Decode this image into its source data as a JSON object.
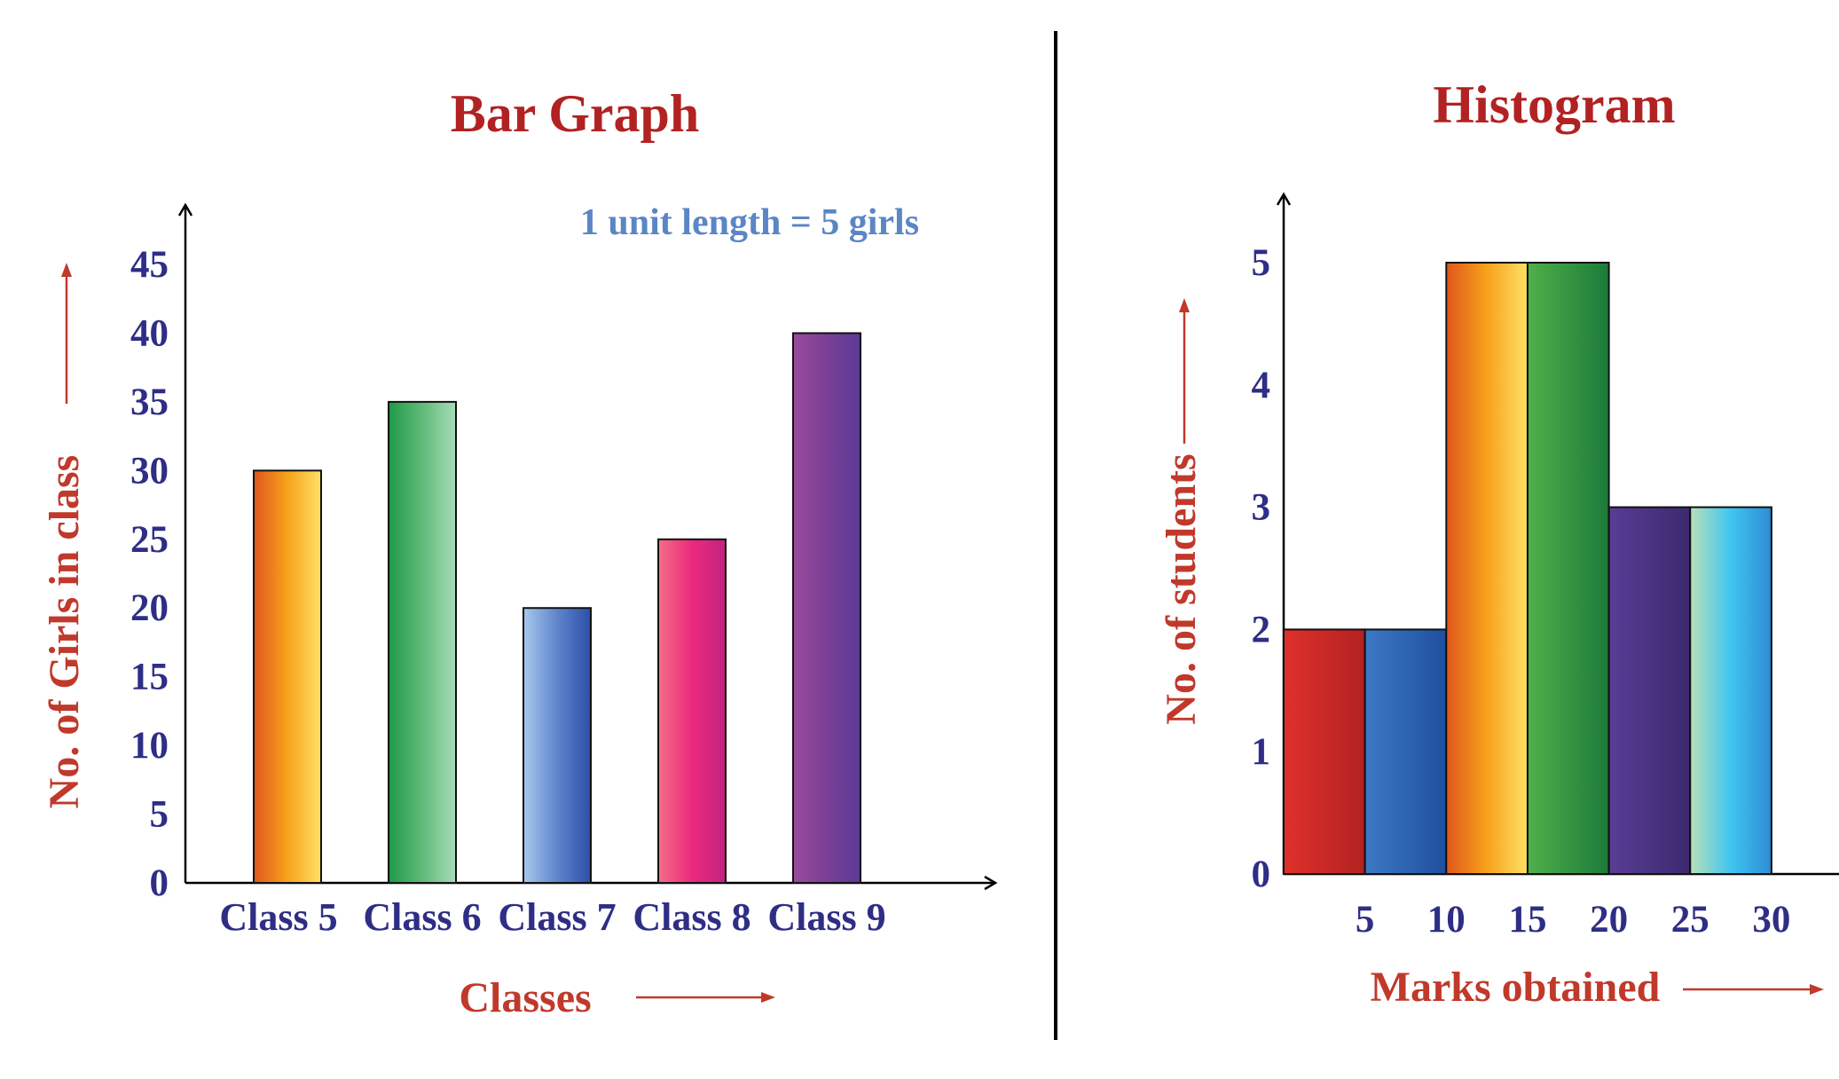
{
  "colors": {
    "title": "#b22222",
    "axis_title": "#c0392b",
    "tick": "#2e2e86",
    "note": "#5b86c6",
    "divider": "#000000"
  },
  "chart_data": [
    {
      "type": "bar",
      "title": "Bar Graph",
      "annotation": "1 unit length = 5 girls",
      "xlabel": "Classes",
      "ylabel": "No. of Girls in class",
      "categories": [
        "Class 5",
        "Class 6",
        "Class 7",
        "Class 8",
        "Class 9"
      ],
      "values": [
        30,
        35,
        20,
        25,
        40
      ],
      "yticks": [
        0,
        5,
        10,
        15,
        20,
        25,
        30,
        35,
        40,
        45
      ],
      "ylim": [
        0,
        45
      ],
      "grid": false,
      "bar_gradients": [
        [
          "#e0561c",
          "#f7a21b",
          "#ffe066"
        ],
        [
          "#1f9a48",
          "#5fba78",
          "#a8dcb8"
        ],
        [
          "#a9c8ec",
          "#5f86cc",
          "#2e4ea8"
        ],
        [
          "#f26d85",
          "#ec2a7f",
          "#c0237f"
        ],
        [
          "#9c4a9c",
          "#7a3f96",
          "#5a3b96"
        ]
      ]
    },
    {
      "type": "bar",
      "title": "Histogram",
      "xlabel": "Marks obtained",
      "ylabel": "No. of students",
      "bins": [
        [
          0,
          5
        ],
        [
          5,
          10
        ],
        [
          10,
          15
        ],
        [
          15,
          20
        ],
        [
          20,
          25
        ],
        [
          25,
          30
        ]
      ],
      "values": [
        2,
        2,
        5,
        5,
        3,
        3
      ],
      "xticks": [
        5,
        10,
        15,
        20,
        25,
        30
      ],
      "yticks": [
        0,
        1,
        2,
        3,
        4,
        5
      ],
      "ylim": [
        0,
        5
      ],
      "grid": false,
      "bar_gradients": [
        [
          "#e0302a",
          "#b22222"
        ],
        [
          "#3d79c4",
          "#1e4f9e"
        ],
        [
          "#e0561c",
          "#f7a21b",
          "#ffe066"
        ],
        [
          "#4fb04a",
          "#1c7a3a"
        ],
        [
          "#5a3d96",
          "#3b2a6e"
        ],
        [
          "#b9e0b9",
          "#3fc6f0",
          "#2f8ad6"
        ]
      ]
    }
  ]
}
